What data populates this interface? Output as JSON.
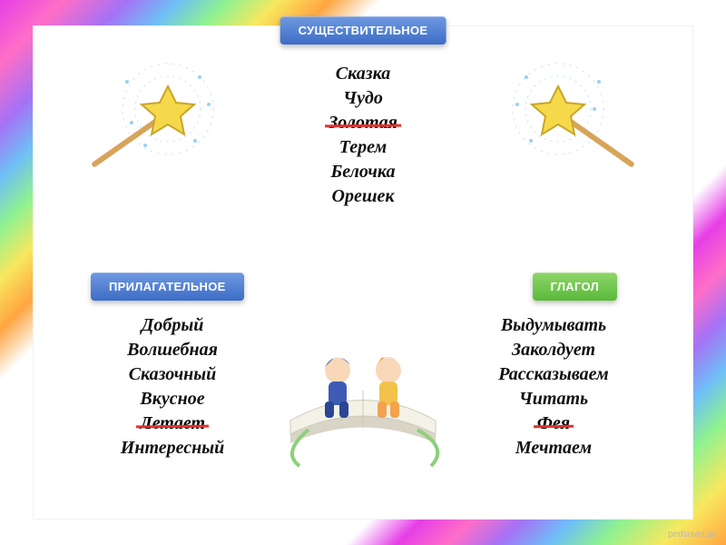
{
  "labels": {
    "noun": "СУЩЕСТВИТЕЛЬНОЕ",
    "adjective": "ПРИЛАГАТЕЛЬНОЕ",
    "verb": "ГЛАГОЛ"
  },
  "lists": {
    "noun": [
      {
        "text": "Сказка",
        "struck": false
      },
      {
        "text": "Чудо",
        "struck": false
      },
      {
        "text": "Золотая",
        "struck": true
      },
      {
        "text": "Терем",
        "struck": false
      },
      {
        "text": "Белочка",
        "struck": false
      },
      {
        "text": "Орешек",
        "struck": false
      }
    ],
    "adjective": [
      {
        "text": "Добрый",
        "struck": false
      },
      {
        "text": "Волшебная",
        "struck": false
      },
      {
        "text": "Сказочный",
        "struck": false
      },
      {
        "text": "Вкусное",
        "struck": false
      },
      {
        "text": "Летает",
        "struck": true
      },
      {
        "text": "Интересный",
        "struck": false
      }
    ],
    "verb": [
      {
        "text": "Выдумывать",
        "struck": false
      },
      {
        "text": "Заколдует",
        "struck": false
      },
      {
        "text": "Рассказываем",
        "struck": false
      },
      {
        "text": "Читать",
        "struck": false
      },
      {
        "text": "Фея",
        "struck": true
      },
      {
        "text": "Мечтаем",
        "struck": false
      }
    ]
  },
  "watermark": "pedsovet.su",
  "colors": {
    "noun_label_bg": "#4a78cf",
    "adj_label_bg": "#4a78cf",
    "verb_label_bg": "#6bc048",
    "strike_color": "#e0332f",
    "text_color": "#111111",
    "star_fill": "#f6d94a",
    "star_stroke": "#c9a52a",
    "wand_handle": "#d7a45a",
    "book_page": "#f4f1e6",
    "book_edge": "#d8d4c6",
    "kid_blue": "#3e5bb5",
    "kid_orange": "#f3a24d"
  }
}
